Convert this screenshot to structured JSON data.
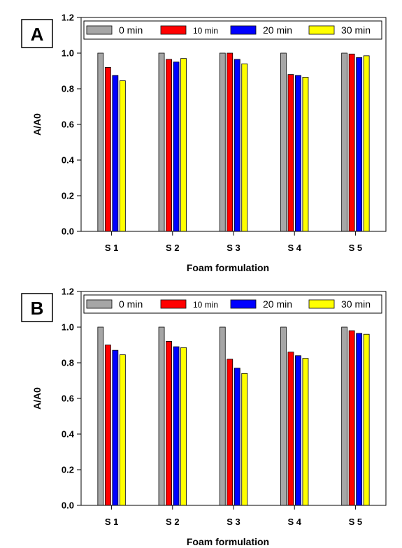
{
  "chart_data": [
    {
      "type": "bar",
      "panel_label": "A",
      "categories": [
        "S 1",
        "S 2",
        "S 3",
        "S 4",
        "S 5"
      ],
      "series": [
        {
          "name": "0 min",
          "color": "#a6a6a6",
          "values": [
            1.0,
            1.0,
            1.0,
            1.0,
            1.0
          ]
        },
        {
          "name": "10 min",
          "color": "#ff0000",
          "values": [
            0.92,
            0.965,
            1.0,
            0.88,
            0.995
          ]
        },
        {
          "name": "20 min",
          "color": "#0000ff",
          "values": [
            0.875,
            0.95,
            0.965,
            0.875,
            0.975
          ]
        },
        {
          "name": "30 min",
          "color": "#ffff00",
          "values": [
            0.845,
            0.97,
            0.94,
            0.865,
            0.985
          ]
        }
      ],
      "xlabel": "Foam formulation",
      "ylabel": "A/A0",
      "ylim": [
        0,
        1.2
      ],
      "yticks": [
        "0.0",
        "0.2",
        "0.4",
        "0.6",
        "0.8",
        "1.0",
        "1.2"
      ],
      "grid": false,
      "legend_position": "top"
    },
    {
      "type": "bar",
      "panel_label": "B",
      "categories": [
        "S 1",
        "S 2",
        "S 3",
        "S 4",
        "S 5"
      ],
      "series": [
        {
          "name": "0 min",
          "color": "#a6a6a6",
          "values": [
            1.0,
            1.0,
            1.0,
            1.0,
            1.0
          ]
        },
        {
          "name": "10 min",
          "color": "#ff0000",
          "values": [
            0.9,
            0.92,
            0.82,
            0.86,
            0.98
          ]
        },
        {
          "name": "20 min",
          "color": "#0000ff",
          "values": [
            0.87,
            0.89,
            0.77,
            0.84,
            0.965
          ]
        },
        {
          "name": "30 min",
          "color": "#ffff00",
          "values": [
            0.845,
            0.885,
            0.74,
            0.825,
            0.96
          ]
        }
      ],
      "xlabel": "Foam formulation",
      "ylabel": "A/A0",
      "ylim": [
        0,
        1.2
      ],
      "yticks": [
        "0.0",
        "0.2",
        "0.4",
        "0.6",
        "0.8",
        "1.0",
        "1.2"
      ],
      "grid": false,
      "legend_position": "top"
    }
  ]
}
